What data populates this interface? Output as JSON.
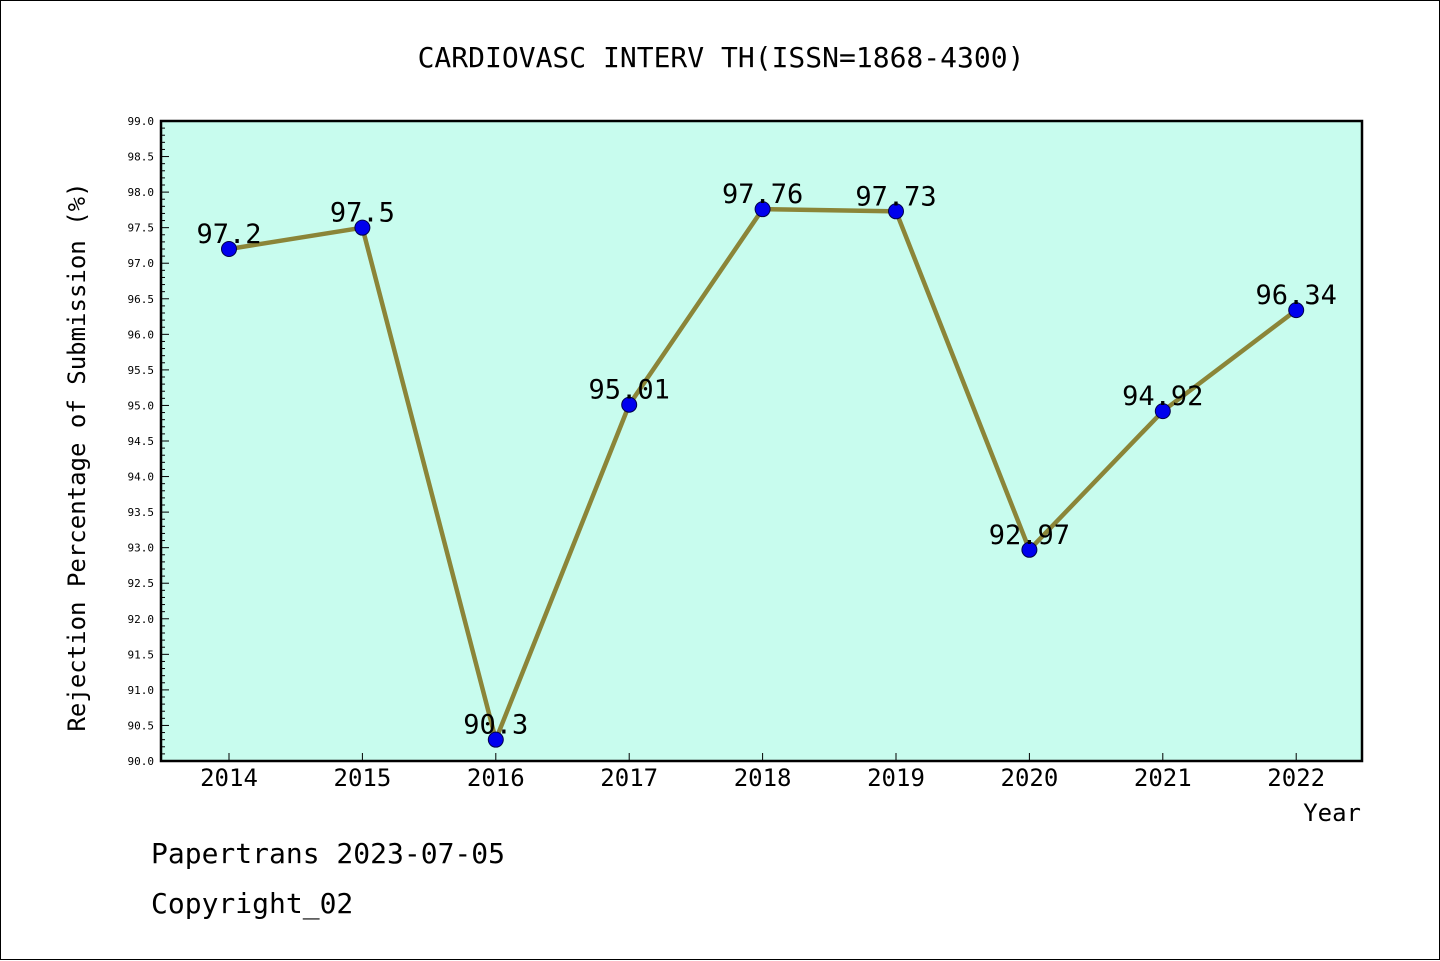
{
  "chart_data": {
    "type": "line",
    "title": "CARDIOVASC INTERV TH(ISSN=1868-4300)",
    "xlabel": "Year",
    "ylabel": "Rejection Percentage of Submission (%)",
    "categories": [
      "2014",
      "2015",
      "2016",
      "2017",
      "2018",
      "2019",
      "2020",
      "2021",
      "2022"
    ],
    "values": [
      97.2,
      97.5,
      90.3,
      95.01,
      97.76,
      97.73,
      92.97,
      94.92,
      96.34
    ],
    "data_labels": [
      "97.2",
      "97.5",
      "90.3",
      "95.01",
      "97.76",
      "97.73",
      "92.97",
      "94.92",
      "96.34"
    ],
    "ylim": [
      90.0,
      99.0
    ],
    "yticks": [
      "90.0",
      "90.5",
      "91.0",
      "91.5",
      "92.0",
      "92.5",
      "93.0",
      "93.5",
      "94.0",
      "94.5",
      "95.0",
      "95.5",
      "96.0",
      "96.5",
      "97.0",
      "97.5",
      "98.0",
      "98.5",
      "99.0"
    ],
    "grid": false,
    "legend": "none",
    "colors": {
      "plot_background": "#c8fcee",
      "line": "#8b8538",
      "marker": "#0000ee",
      "axis": "#000000"
    }
  },
  "footer": {
    "line1": "Papertrans 2023-07-05",
    "line2": "Copyright_02"
  }
}
